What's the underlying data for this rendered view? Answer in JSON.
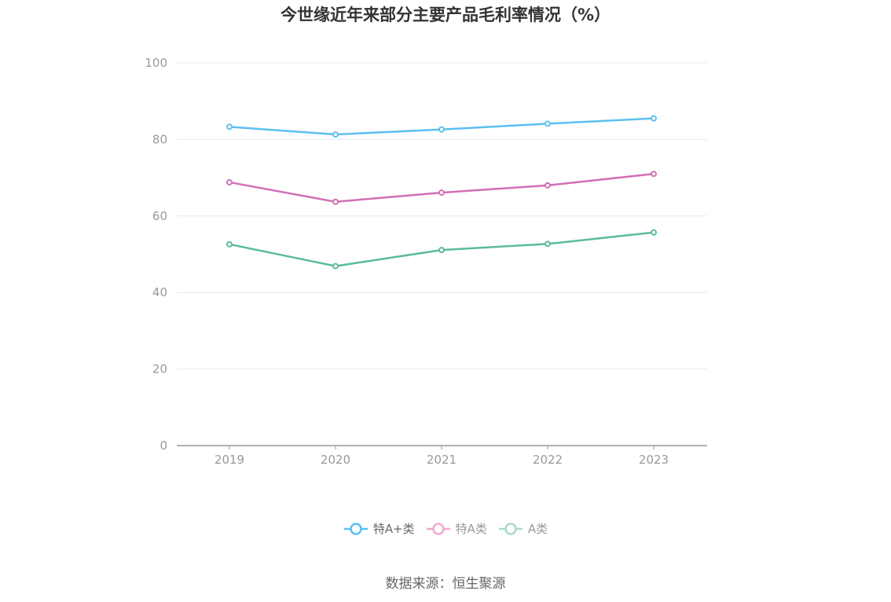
{
  "source_text": "数据来源：恒生聚源",
  "chart_data": {
    "type": "line",
    "title": "今世缘近年来部分主要产品毛利率情况（%）",
    "xlabel": "",
    "ylabel": "",
    "categories": [
      "2019",
      "2020",
      "2021",
      "2022",
      "2023"
    ],
    "ylim": [
      0,
      100
    ],
    "yticks": [
      "0",
      "20",
      "40",
      "60",
      "80",
      "100"
    ],
    "grid": true,
    "legend_position": "bottom",
    "series": [
      {
        "name": "特A+类",
        "color": "#5bc0f0",
        "values": [
          83.3,
          81.3,
          82.6,
          84.1,
          85.5
        ]
      },
      {
        "name": "特A类",
        "color": "#d36fb6",
        "values": [
          68.8,
          63.7,
          66.1,
          68.0,
          71.0
        ]
      },
      {
        "name": "A类",
        "color": "#5bbaa0",
        "values": [
          52.6,
          46.9,
          51.1,
          52.7,
          55.7
        ]
      }
    ],
    "legend_states": [
      "active",
      "inactive",
      "inactive"
    ],
    "legend_inactive_colors": [
      "#5bc0f0",
      "#f0a8d0",
      "#a8dcc8"
    ]
  }
}
